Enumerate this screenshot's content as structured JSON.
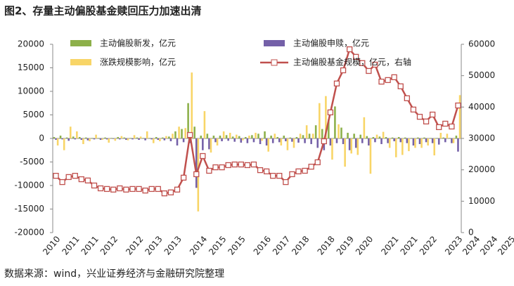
{
  "chart_data": {
    "type": "bar",
    "title": "图2、存量主动偏股基金赎回压力加速出清",
    "source": "数据来源：wind，兴业证券经济与金融研究院整理",
    "categories": [
      "2010",
      null,
      null,
      "2011",
      null,
      null,
      "2011",
      null,
      null,
      "2012",
      null,
      null,
      null,
      "2012",
      null,
      null,
      "2013",
      null,
      null,
      "2013",
      null,
      null,
      null,
      "2014",
      null,
      null,
      "2015",
      null,
      null,
      "2015",
      null,
      null,
      null,
      "2016",
      null,
      null,
      "2017",
      null,
      null,
      "2018",
      null,
      null,
      null,
      "2018",
      null,
      null,
      "2019",
      null,
      null,
      "2020",
      null,
      null,
      null,
      "2021",
      null,
      null,
      "2021",
      null,
      null,
      "2022",
      null,
      null,
      null,
      "2023"
    ],
    "xlabels_extra": [
      "2024",
      "2024",
      "2025"
    ],
    "series": [
      {
        "name": "主动偏股新发，亿元",
        "type": "bar",
        "color": "#8db04a",
        "values": [
          300,
          600,
          200,
          400,
          300,
          200,
          100,
          100,
          200,
          100,
          300,
          200,
          100,
          200,
          100,
          100,
          300,
          200,
          400,
          1500,
          2000,
          7500,
          2500,
          600,
          1000,
          600,
          600,
          700,
          400,
          500,
          300,
          700,
          1000,
          1500,
          600,
          300,
          600,
          200,
          300,
          700,
          1000,
          2800,
          2000,
          4000,
          6800,
          2300,
          1200,
          1000,
          800,
          500,
          300,
          400,
          300,
          200,
          300,
          200,
          100,
          200,
          200,
          100,
          100,
          200,
          100,
          600
        ]
      },
      {
        "name": "主动偏股申赎，亿元",
        "type": "bar",
        "color": "#7460a8",
        "values": [
          -300,
          -200,
          -500,
          -200,
          -300,
          -400,
          -200,
          -300,
          -200,
          -100,
          -200,
          -300,
          -200,
          -300,
          -400,
          -200,
          -300,
          -400,
          -600,
          -1500,
          -800,
          -1000,
          -10500,
          -2500,
          -2300,
          -800,
          -600,
          -500,
          -700,
          -900,
          -1000,
          -800,
          -1200,
          -1500,
          -1000,
          -800,
          -600,
          -700,
          -900,
          -1000,
          -1200,
          -2000,
          -2500,
          -1500,
          -1000,
          -1200,
          -2500,
          -2000,
          -1000,
          -1500,
          -800,
          -1200,
          -1000,
          -600,
          -800,
          -1000,
          -1500,
          -1200,
          -800,
          -1000,
          -1300,
          -800,
          -1000,
          -2800
        ]
      },
      {
        "name": "涨跌规模影响，亿元",
        "type": "bar",
        "color": "#f8d567",
        "values": [
          -1500,
          -2500,
          2500,
          1500,
          -1200,
          -600,
          800,
          -300,
          -900,
          -500,
          500,
          -400,
          700,
          400,
          1500,
          -1000,
          -600,
          500,
          1000,
          2500,
          2200,
          14000,
          -15500,
          5800,
          -3000,
          -1500,
          1500,
          1200,
          800,
          -400,
          600,
          1200,
          -500,
          -2800,
          1000,
          -1500,
          -2500,
          -2000,
          1000,
          2800,
          1000,
          7500,
          9000,
          -4500,
          3000,
          -6000,
          -3200,
          -3500,
          4500,
          -7500,
          800,
          1400,
          -2000,
          -4000,
          -3500,
          -2700,
          -2000,
          -2000,
          -1500,
          -3600,
          1200,
          1000,
          -1000,
          9200
        ]
      },
      {
        "name": "主动偏股基金规模，亿元，右轴",
        "type": "line",
        "axis": "y2",
        "color": "#c0504d",
        "values": [
          18100,
          16100,
          17700,
          18100,
          17000,
          16600,
          15000,
          14100,
          13900,
          13700,
          14100,
          13700,
          13900,
          13900,
          13400,
          13900,
          13900,
          12500,
          12800,
          13700,
          17500,
          31100,
          18600,
          24400,
          19700,
          20800,
          20800,
          21500,
          21700,
          21700,
          21500,
          21700,
          19900,
          19500,
          18100,
          18100,
          16100,
          18600,
          19500,
          19700,
          21000,
          22400,
          29100,
          38300,
          47500,
          51700,
          58400,
          56000,
          54000,
          51500,
          53500,
          48100,
          48600,
          49500,
          46600,
          42800,
          39200,
          36900,
          35400,
          37600,
          33600,
          34700,
          33800,
          40500
        ]
      }
    ],
    "ylim": [
      -20000,
      20000
    ],
    "yticks": [
      -20000,
      -15000,
      -10000,
      -5000,
      0,
      5000,
      10000,
      15000,
      20000
    ],
    "y2lim": [
      0,
      60000
    ],
    "y2ticks": [
      0,
      10000,
      20000,
      30000,
      40000,
      50000,
      60000
    ]
  }
}
